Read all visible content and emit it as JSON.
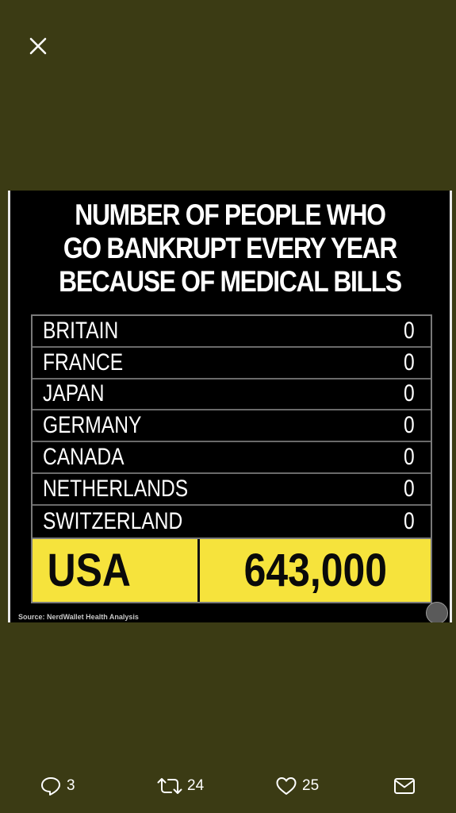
{
  "viewer": {
    "close_icon": "close-icon"
  },
  "graphic": {
    "headline": [
      "NUMBER OF PEOPLE WHO",
      "GO BANKRUPT EVERY YEAR",
      "BECAUSE OF MEDICAL BILLS"
    ],
    "rows": [
      {
        "country": "BRITAIN",
        "value": "0"
      },
      {
        "country": "FRANCE",
        "value": "0"
      },
      {
        "country": "JAPAN",
        "value": "0"
      },
      {
        "country": "GERMANY",
        "value": "0"
      },
      {
        "country": "CANADA",
        "value": "0"
      },
      {
        "country": "NETHERLANDS",
        "value": "0"
      },
      {
        "country": "SWITZERLAND",
        "value": "0"
      }
    ],
    "highlight": {
      "country": "USA",
      "value": "643,000"
    },
    "source": "Source: NerdWallet Health Analysis",
    "colors": {
      "highlight": "#f6e33c",
      "background": "#000000",
      "page": "#3b3b14"
    }
  },
  "actions": {
    "reply": {
      "icon": "reply-icon",
      "count": "3"
    },
    "retweet": {
      "icon": "retweet-icon",
      "count": "24"
    },
    "like": {
      "icon": "heart-icon",
      "count": "25"
    },
    "share": {
      "icon": "mail-icon"
    }
  }
}
